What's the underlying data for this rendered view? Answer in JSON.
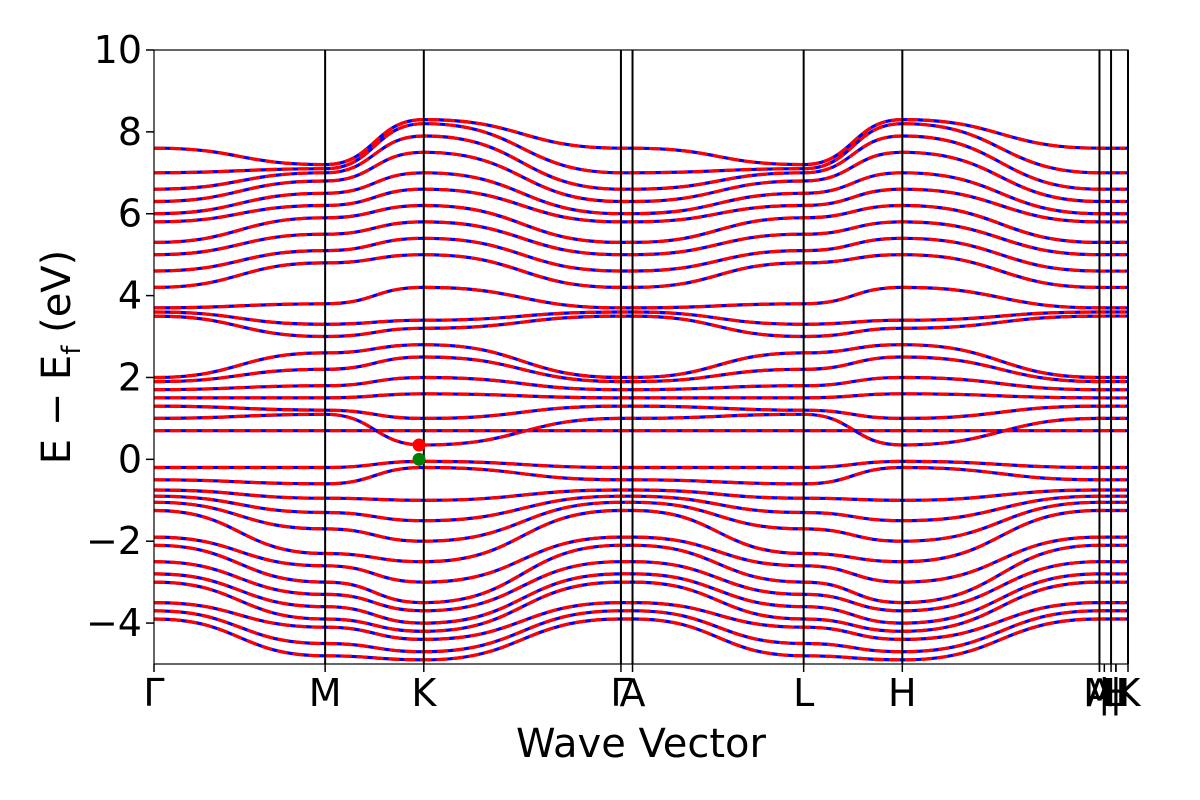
{
  "chart_data": {
    "type": "line",
    "title": "",
    "xlabel": "Wave Vector",
    "ylabel": "E − E_f (eV)",
    "ylabel_parts": {
      "main": "E − E",
      "sub": "f",
      "unit": " (eV)"
    },
    "ylim": [
      -5,
      10
    ],
    "yticks": [
      -4,
      -2,
      0,
      2,
      4,
      6,
      8,
      10
    ],
    "ytick_labels": [
      "−4",
      "−2",
      "0",
      "2",
      "4",
      "6",
      "8",
      "10"
    ],
    "xlim": [
      0,
      1
    ],
    "high_symmetry_points": [
      {
        "label": "Γ",
        "x": 0.0
      },
      {
        "label": "M",
        "x": 0.1757
      },
      {
        "label": "K",
        "x": 0.277
      },
      {
        "label": "Γ",
        "x": 0.4794
      },
      {
        "label": "A",
        "x": 0.4913
      },
      {
        "label": "L",
        "x": 0.667
      },
      {
        "label": "H",
        "x": 0.7683
      },
      {
        "label": "A",
        "x": 0.9707
      },
      {
        "label": "M",
        "x": 0.9707
      },
      {
        "label": "|",
        "x": 0.9757
      },
      {
        "label": "L",
        "x": 0.9826
      },
      {
        "label": "|",
        "x": 0.9876
      },
      {
        "label": "H",
        "x": 0.9876
      },
      {
        "label": "K",
        "x": 1.0
      }
    ],
    "vertical_lines_x": [
      0.1757,
      0.277,
      0.4794,
      0.4913,
      0.667,
      0.7683,
      0.9707,
      0.9826,
      1.0
    ],
    "series_styles": [
      {
        "color": "#0000ff",
        "style": "solid"
      },
      {
        "color": "#ff0000",
        "style": "dashed"
      }
    ],
    "bands": {
      "flat_band_energy": 0.7,
      "valence": [
        {
          "Gamma": -0.2,
          "M": -0.2,
          "K": -0.05
        },
        {
          "Gamma": -0.5,
          "M": -0.6,
          "K": -0.2
        },
        {
          "Gamma": -0.75,
          "M": -0.95,
          "K": -1.0
        },
        {
          "Gamma": -0.9,
          "M": -1.3,
          "K": -1.5
        },
        {
          "Gamma": -1.05,
          "M": -1.7,
          "K": -2.0
        },
        {
          "Gamma": -1.25,
          "M": -2.3,
          "K": -2.5
        },
        {
          "Gamma": -1.9,
          "M": -2.6,
          "K": -3.0
        },
        {
          "Gamma": -2.1,
          "M": -3.0,
          "K": -3.5
        },
        {
          "Gamma": -2.5,
          "M": -3.3,
          "K": -3.7
        },
        {
          "Gamma": -2.8,
          "M": -3.6,
          "K": -4.0
        },
        {
          "Gamma": -3.0,
          "M": -3.9,
          "K": -4.2
        },
        {
          "Gamma": -3.5,
          "M": -4.1,
          "K": -4.4
        },
        {
          "Gamma": -3.7,
          "M": -4.5,
          "K": -4.7
        },
        {
          "Gamma": -3.9,
          "M": -4.8,
          "K": -4.9
        }
      ],
      "conduction_low": [
        {
          "Gamma": 1.0,
          "M": 1.1,
          "K": 0.35
        },
        {
          "Gamma": 1.3,
          "M": 1.2,
          "K": 1.0
        },
        {
          "Gamma": 1.5,
          "M": 1.5,
          "K": 1.6
        },
        {
          "Gamma": 1.7,
          "M": 1.8,
          "K": 2.0
        },
        {
          "Gamma": 1.9,
          "M": 2.2,
          "K": 2.5
        },
        {
          "Gamma": 2.0,
          "M": 2.6,
          "K": 2.8
        },
        {
          "Gamma": 3.5,
          "M": 3.0,
          "K": 3.2
        },
        {
          "Gamma": 3.6,
          "M": 3.3,
          "K": 3.4
        },
        {
          "Gamma": 3.7,
          "M": 3.8,
          "K": 4.2
        }
      ],
      "conduction_high": [
        {
          "Gamma": 4.2,
          "M": 4.8,
          "K": 5.0
        },
        {
          "Gamma": 4.6,
          "M": 5.1,
          "K": 5.4
        },
        {
          "Gamma": 5.0,
          "M": 5.5,
          "K": 5.8
        },
        {
          "Gamma": 5.3,
          "M": 5.9,
          "K": 6.2
        },
        {
          "Gamma": 5.8,
          "M": 6.2,
          "K": 6.6
        },
        {
          "Gamma": 6.0,
          "M": 6.5,
          "K": 7.0
        },
        {
          "Gamma": 6.3,
          "M": 6.8,
          "K": 7.5
        },
        {
          "Gamma": 6.6,
          "M": 7.0,
          "K": 7.9
        },
        {
          "Gamma": 7.0,
          "M": 7.1,
          "K": 8.2
        },
        {
          "Gamma": 7.6,
          "M": 7.2,
          "K": 8.3
        }
      ]
    },
    "markers": [
      {
        "x": 0.2721,
        "y": 0.35,
        "color": "#ff0000"
      },
      {
        "x": 0.2721,
        "y": 0.0,
        "color": "#008000"
      }
    ]
  }
}
